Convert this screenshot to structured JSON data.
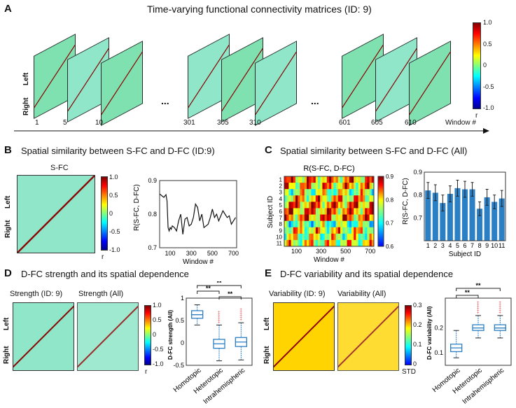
{
  "panelA": {
    "letter": "A",
    "title": "Time-varying functional connectivity matrices (ID: 9)",
    "left": "Left",
    "right": "Right",
    "ellipsis": "...",
    "windows": [
      "1",
      "5",
      "10",
      "301",
      "305",
      "310",
      "601",
      "605",
      "610"
    ],
    "window_label": "Window #",
    "colorbar_ticks": [
      "1.0",
      "0.5",
      "0",
      "-0.5",
      "-1.0"
    ],
    "colorbar_unit": "r"
  },
  "panelB": {
    "letter": "B",
    "title": "Spatial similarity between S-FC and D-FC (ID:9)",
    "matrix_title": "S-FC",
    "left": "Left",
    "right": "Right",
    "colorbar_ticks": [
      "1.0",
      "0.5",
      "0",
      "-0.5",
      "-1.0"
    ],
    "colorbar_unit": "r"
  },
  "panelC": {
    "letter": "C",
    "title": "Spatial similarity between S-FC and D-FC (All)",
    "heatmap_title": "R(S-FC, D-FC)",
    "heatmap_ylabel": "Subject ID",
    "heatmap_xlabel": "Window #",
    "subject_ids": [
      "1",
      "2",
      "3",
      "4",
      "5",
      "6",
      "7",
      "8",
      "9",
      "10",
      "11"
    ],
    "heatmap_xticks": [
      "100",
      "300",
      "500",
      "700"
    ],
    "heatmap_cbar_ticks": [
      "0.9",
      "0.8",
      "0.7",
      "0.6"
    ]
  },
  "panelD": {
    "letter": "D",
    "title": "D-FC strength and its spatial dependence",
    "mat1_title": "Strength (ID: 9)",
    "mat2_title": "Strength (All)",
    "left": "Left",
    "right": "Right",
    "colorbar_ticks": [
      "1.0",
      "0.5",
      "0",
      "-0.5",
      "-1.0"
    ],
    "colorbar_unit": "r",
    "sig": [
      "**",
      "**",
      "**"
    ]
  },
  "panelE": {
    "letter": "E",
    "title": "D-FC variability and its spatial dependence",
    "mat1_title": "Variability (ID: 9)",
    "mat2_title": "Variability (All)",
    "left": "Left",
    "right": "Right",
    "colorbar_ticks": [
      "0.3",
      "0.2",
      "0.1",
      "0"
    ],
    "colorbar_unit": "STD",
    "sig": [
      "**",
      "**"
    ]
  },
  "chart_data": [
    {
      "type": "line",
      "title": "",
      "xlabel": "Window #",
      "ylabel": "R(S-FC, D-FC)",
      "xlim": [
        0,
        730
      ],
      "ylim": [
        0.7,
        0.9
      ],
      "xticks": [
        "100",
        "300",
        "500",
        "700"
      ],
      "yticks": [
        "0.9",
        "0.8",
        "0.7"
      ],
      "x": [
        1,
        20,
        40,
        60,
        70,
        80,
        90,
        100,
        110,
        120,
        140,
        160,
        180,
        200,
        220,
        240,
        260,
        280,
        300,
        320,
        340,
        360,
        380,
        400,
        420,
        440,
        460,
        480,
        500,
        520,
        540,
        560,
        580,
        600,
        620,
        640,
        660,
        680,
        700,
        720
      ],
      "values": [
        0.86,
        0.855,
        0.85,
        0.858,
        0.84,
        0.76,
        0.75,
        0.76,
        0.755,
        0.765,
        0.76,
        0.75,
        0.78,
        0.8,
        0.74,
        0.785,
        0.79,
        0.765,
        0.77,
        0.79,
        0.83,
        0.82,
        0.78,
        0.8,
        0.76,
        0.765,
        0.77,
        0.79,
        0.815,
        0.79,
        0.8,
        0.78,
        0.795,
        0.81,
        0.8,
        0.79,
        0.795,
        0.77,
        0.78,
        0.79
      ]
    },
    {
      "type": "bar",
      "title": "",
      "xlabel": "Subject ID",
      "ylabel": "R(S-FC, D-FC)",
      "ylim": [
        0.6,
        0.9
      ],
      "yticks": [
        "0.9",
        "0.8",
        "0.7"
      ],
      "categories": [
        "1",
        "2",
        "3",
        "4",
        "5",
        "6",
        "7",
        "8",
        "9",
        "10",
        "11"
      ],
      "values": [
        0.82,
        0.81,
        0.765,
        0.805,
        0.83,
        0.825,
        0.825,
        0.74,
        0.79,
        0.77,
        0.785
      ],
      "errors": [
        0.035,
        0.035,
        0.035,
        0.035,
        0.035,
        0.035,
        0.03,
        0.03,
        0.035,
        0.03,
        0.035
      ],
      "color": "#2b7fc4"
    },
    {
      "type": "box",
      "xlabel": "",
      "ylabel": "D-FC strength (All)",
      "ylim": [
        -0.5,
        1.0
      ],
      "yticks": [
        "1",
        "0.5",
        "0",
        "-0.5"
      ],
      "categories": [
        "Homotopic",
        "Heterotopic",
        "Intrahemispheric"
      ],
      "median": [
        0.63,
        -0.02,
        0.02
      ],
      "q1": [
        0.55,
        -0.12,
        -0.08
      ],
      "q3": [
        0.72,
        0.08,
        0.12
      ],
      "whisker_low": [
        0.4,
        -0.4,
        -0.38
      ],
      "whisker_high": [
        0.85,
        0.4,
        0.45
      ],
      "color": "#2b7fc4"
    },
    {
      "type": "box",
      "xlabel": "",
      "ylabel": "D-FC variability (All)",
      "ylim": [
        0.05,
        0.32
      ],
      "yticks": [
        "0.2",
        "0.1"
      ],
      "categories": [
        "Homotopic",
        "Heterotopic",
        "Intrahemispheric"
      ],
      "median": [
        0.12,
        0.2,
        0.2
      ],
      "q1": [
        0.105,
        0.19,
        0.19
      ],
      "q3": [
        0.135,
        0.213,
        0.213
      ],
      "whisker_low": [
        0.08,
        0.16,
        0.16
      ],
      "whisker_high": [
        0.19,
        0.25,
        0.25
      ],
      "color": "#2b7fc4"
    }
  ]
}
